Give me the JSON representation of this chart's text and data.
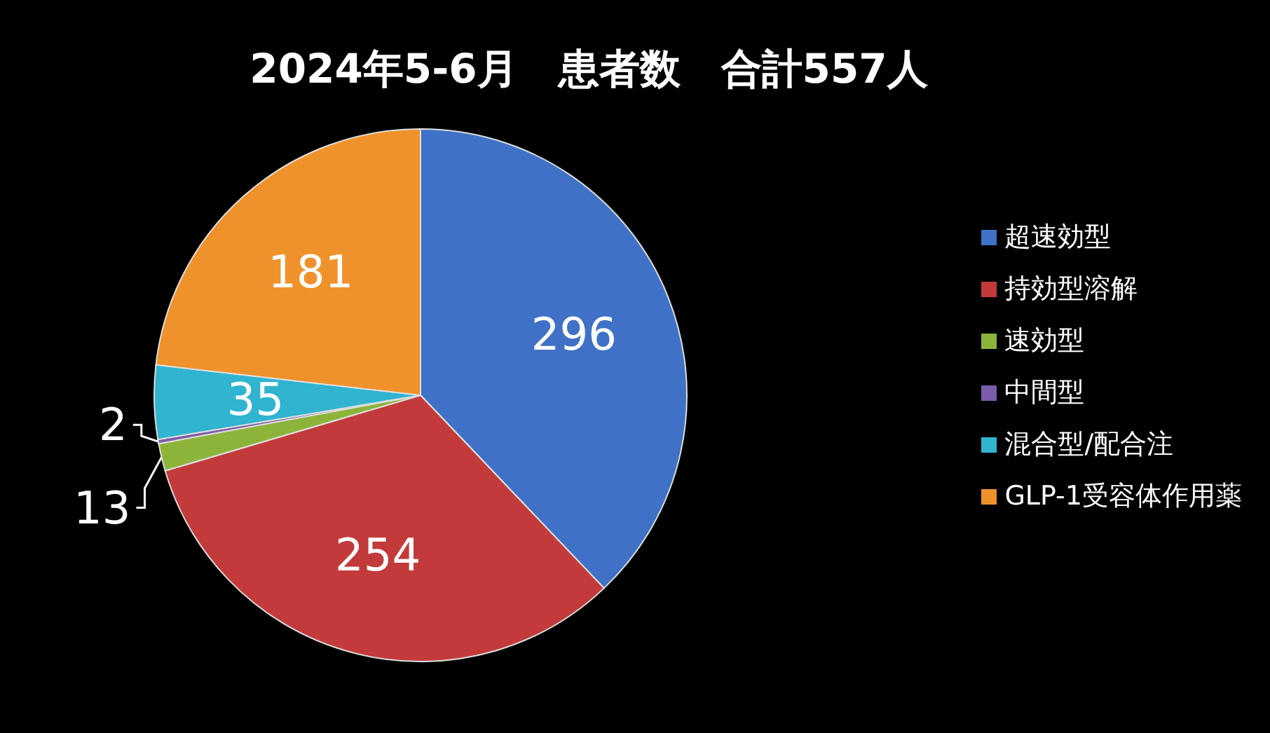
{
  "chart_data": {
    "type": "pie",
    "title": "2024年5-6月　患者数　合計557人",
    "categories": [
      "超速効型",
      "持効型溶解",
      "速効型",
      "中間型",
      "混合型/配合注",
      "GLP-1受容体作用薬"
    ],
    "values": [
      296,
      254,
      13,
      2,
      35,
      181
    ],
    "colors": [
      "#3f72c6",
      "#c23b3a",
      "#8cb43a",
      "#7a5ca8",
      "#30b4cf",
      "#f0922b"
    ],
    "data_labels": true,
    "legend": "right"
  }
}
